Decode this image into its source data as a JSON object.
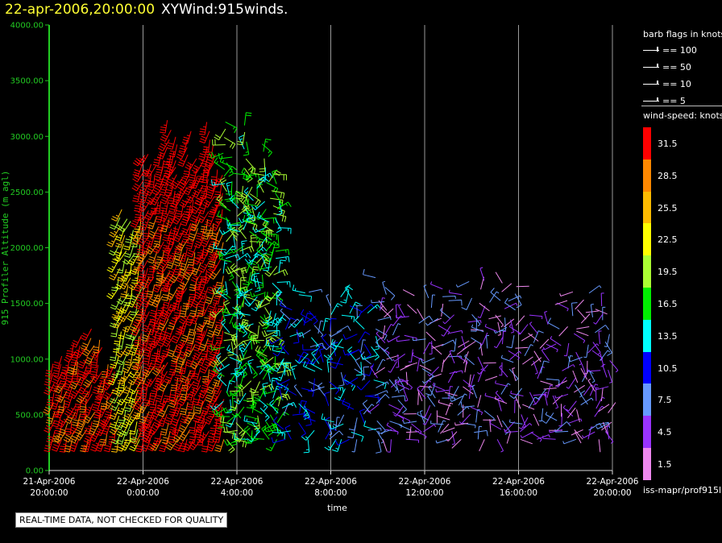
{
  "header": {
    "date_time": "22-apr-2006,20:00:00",
    "product": "XYWind:915winds."
  },
  "notice": "REAL-TIME DATA, NOT CHECKED FOR QUALITY",
  "footer": "iss-mapr/prof915l",
  "legend": {
    "barb_title": "barb flags in knots",
    "barbs": [
      {
        "label": "== 100"
      },
      {
        "label": "== 50"
      },
      {
        "label": "== 10"
      },
      {
        "label": "== 5"
      }
    ],
    "speed_title": "wind-speed: knots",
    "colors": [
      {
        "label": "31.5",
        "color": "#ff0000"
      },
      {
        "label": "28.5",
        "color": "#ff8800"
      },
      {
        "label": "25.5",
        "color": "#ffbb00"
      },
      {
        "label": "22.5",
        "color": "#ffff00"
      },
      {
        "label": "19.5",
        "color": "#aaff33"
      },
      {
        "label": "16.5",
        "color": "#00ee00"
      },
      {
        "label": "13.5",
        "color": "#00ffff"
      },
      {
        "label": "10.5",
        "color": "#0000ff"
      },
      {
        "label": "7.5",
        "color": "#6699ff"
      },
      {
        "label": "4.5",
        "color": "#9933ff"
      },
      {
        "label": "1.5",
        "color": "#ee88ee"
      }
    ]
  },
  "chart_data": {
    "type": "scatter",
    "ylabel": "915 Profiler Altitude (m agl)",
    "xlabel": "time",
    "ylim": [
      0,
      4000
    ],
    "yticks": [
      "0.00",
      "500.00",
      "1000.00",
      "1500.00",
      "2000.00",
      "2500.00",
      "3000.00",
      "3500.00",
      "4000.00"
    ],
    "xticks": [
      {
        "date": "21-Apr-2006",
        "time": "20:00:00"
      },
      {
        "date": "22-Apr-2006",
        "time": "0:00:00"
      },
      {
        "date": "22-Apr-2006",
        "time": "4:00:00"
      },
      {
        "date": "22-Apr-2006",
        "time": "8:00:00"
      },
      {
        "date": "22-Apr-2006",
        "time": "12:00:00"
      },
      {
        "date": "22-Apr-2006",
        "time": "16:00:00"
      },
      {
        "date": "22-Apr-2006",
        "time": "20:00:00"
      }
    ],
    "xlim_hours": [
      0,
      24
    ],
    "grid": "vertical",
    "wind_regimes": [
      {
        "start_hour": 0.2,
        "end_hour": 3.0,
        "max_alt": 1300,
        "speed": 31.5
      },
      {
        "start_hour": 3.0,
        "end_hour": 4.0,
        "max_alt": 2500,
        "speed": 22.5
      },
      {
        "start_hour": 4.0,
        "end_hour": 7.5,
        "max_alt": 3300,
        "speed": 31.5
      },
      {
        "start_hour": 7.5,
        "end_hour": 10.0,
        "max_alt": 3200,
        "speed": 16.5
      },
      {
        "start_hour": 10.0,
        "end_hour": 14.0,
        "max_alt": 1800,
        "speed": 10.5
      },
      {
        "start_hour": 14.0,
        "end_hour": 24.0,
        "max_alt": 1800,
        "speed": 4.5
      }
    ]
  }
}
